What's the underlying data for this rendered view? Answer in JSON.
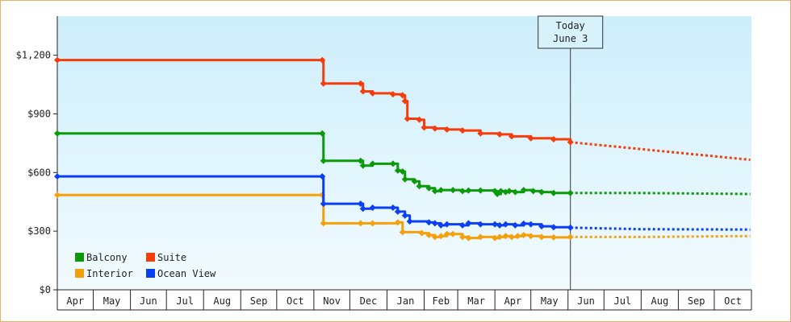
{
  "chart_data": {
    "type": "line",
    "ylim": [
      0,
      1400
    ],
    "y_ticks": [
      {
        "value": 0,
        "label": "$0"
      },
      {
        "value": 300,
        "label": "$300"
      },
      {
        "value": 600,
        "label": "$600"
      },
      {
        "value": 900,
        "label": "$900"
      },
      {
        "value": 1200,
        "label": "$1,200"
      }
    ],
    "x_domain": [
      "2024-04-01",
      "2025-11-01"
    ],
    "months": [
      {
        "start": "2024-04-01",
        "label": "Apr"
      },
      {
        "start": "2024-05-01",
        "label": "May"
      },
      {
        "start": "2024-06-01",
        "label": "Jun"
      },
      {
        "start": "2024-07-01",
        "label": "Jul"
      },
      {
        "start": "2024-08-01",
        "label": "Aug"
      },
      {
        "start": "2024-09-01",
        "label": "Sep"
      },
      {
        "start": "2024-10-01",
        "label": "Oct"
      },
      {
        "start": "2024-11-01",
        "label": "Nov"
      },
      {
        "start": "2024-12-01",
        "label": "Dec"
      },
      {
        "start": "2025-01-01",
        "label": "Jan"
      },
      {
        "start": "2025-02-01",
        "label": "Feb"
      },
      {
        "start": "2025-03-01",
        "label": "Mar"
      },
      {
        "start": "2025-04-01",
        "label": "Apr"
      },
      {
        "start": "2025-05-01",
        "label": "May"
      },
      {
        "start": "2025-06-01",
        "label": "Jun"
      },
      {
        "start": "2025-07-01",
        "label": "Jul"
      },
      {
        "start": "2025-08-01",
        "label": "Aug"
      },
      {
        "start": "2025-09-01",
        "label": "Sep"
      },
      {
        "start": "2025-10-01",
        "label": "Oct"
      }
    ],
    "today": {
      "date": "2025-06-03",
      "line1": "Today",
      "line2": "June 3"
    },
    "grid": false,
    "legend_placement": "bottom-left",
    "series": [
      {
        "name": "Balcony",
        "color": "#0a9a0a",
        "points": [
          [
            "2024-04-01",
            800
          ],
          [
            "2024-11-08",
            800
          ],
          [
            "2024-11-09",
            660
          ],
          [
            "2024-12-10",
            660
          ],
          [
            "2024-12-12",
            635
          ],
          [
            "2024-12-20",
            645
          ],
          [
            "2025-01-06",
            645
          ],
          [
            "2025-01-10",
            610
          ],
          [
            "2025-01-14",
            605
          ],
          [
            "2025-01-16",
            565
          ],
          [
            "2025-01-24",
            555
          ],
          [
            "2025-01-28",
            530
          ],
          [
            "2025-02-05",
            520
          ],
          [
            "2025-02-10",
            505
          ],
          [
            "2025-02-15",
            510
          ],
          [
            "2025-02-25",
            510
          ],
          [
            "2025-03-05",
            505
          ],
          [
            "2025-03-10",
            508
          ],
          [
            "2025-03-20",
            508
          ],
          [
            "2025-04-01",
            505
          ],
          [
            "2025-04-03",
            490
          ],
          [
            "2025-04-06",
            505
          ],
          [
            "2025-04-10",
            500
          ],
          [
            "2025-04-13",
            505
          ],
          [
            "2025-04-18",
            500
          ],
          [
            "2025-04-25",
            510
          ],
          [
            "2025-05-03",
            505
          ],
          [
            "2025-05-10",
            500
          ],
          [
            "2025-05-20",
            495
          ],
          [
            "2025-06-03",
            495
          ]
        ],
        "projection": [
          [
            "2025-06-03",
            495
          ],
          [
            "2025-08-01",
            495
          ],
          [
            "2025-10-31",
            490
          ]
        ]
      },
      {
        "name": "Suite",
        "color": "#f53c0a",
        "points": [
          [
            "2024-04-01",
            1175
          ],
          [
            "2024-11-08",
            1175
          ],
          [
            "2024-11-09",
            1055
          ],
          [
            "2024-12-10",
            1055
          ],
          [
            "2024-12-12",
            1015
          ],
          [
            "2024-12-20",
            1005
          ],
          [
            "2025-01-06",
            1000
          ],
          [
            "2025-01-14",
            995
          ],
          [
            "2025-01-16",
            965
          ],
          [
            "2025-01-18",
            875
          ],
          [
            "2025-01-28",
            870
          ],
          [
            "2025-02-01",
            830
          ],
          [
            "2025-02-10",
            825
          ],
          [
            "2025-02-20",
            820
          ],
          [
            "2025-03-05",
            815
          ],
          [
            "2025-03-20",
            800
          ],
          [
            "2025-04-05",
            795
          ],
          [
            "2025-04-15",
            785
          ],
          [
            "2025-05-01",
            775
          ],
          [
            "2025-05-20",
            770
          ],
          [
            "2025-06-03",
            755
          ]
        ],
        "projection": [
          [
            "2025-06-03",
            755
          ],
          [
            "2025-10-31",
            665
          ]
        ]
      },
      {
        "name": "Interior",
        "color": "#f5a00a",
        "points": [
          [
            "2024-04-01",
            485
          ],
          [
            "2024-11-08",
            485
          ],
          [
            "2024-11-09",
            340
          ],
          [
            "2024-12-10",
            340
          ],
          [
            "2024-12-20",
            340
          ],
          [
            "2025-01-10",
            345
          ],
          [
            "2025-01-14",
            295
          ],
          [
            "2025-01-30",
            290
          ],
          [
            "2025-02-05",
            280
          ],
          [
            "2025-02-10",
            270
          ],
          [
            "2025-02-15",
            275
          ],
          [
            "2025-02-20",
            285
          ],
          [
            "2025-02-25",
            285
          ],
          [
            "2025-03-05",
            270
          ],
          [
            "2025-03-10",
            265
          ],
          [
            "2025-03-20",
            270
          ],
          [
            "2025-04-01",
            265
          ],
          [
            "2025-04-05",
            270
          ],
          [
            "2025-04-10",
            275
          ],
          [
            "2025-04-15",
            270
          ],
          [
            "2025-04-20",
            275
          ],
          [
            "2025-04-25",
            280
          ],
          [
            "2025-05-01",
            275
          ],
          [
            "2025-05-10",
            270
          ],
          [
            "2025-05-20",
            268
          ],
          [
            "2025-06-03",
            270
          ]
        ],
        "projection": [
          [
            "2025-06-03",
            270
          ],
          [
            "2025-08-01",
            270
          ],
          [
            "2025-10-31",
            275
          ]
        ]
      },
      {
        "name": "Ocean View",
        "color": "#0a3ff5",
        "points": [
          [
            "2024-04-01",
            580
          ],
          [
            "2024-11-08",
            580
          ],
          [
            "2024-11-09",
            440
          ],
          [
            "2024-12-10",
            440
          ],
          [
            "2024-12-12",
            415
          ],
          [
            "2024-12-20",
            420
          ],
          [
            "2025-01-06",
            420
          ],
          [
            "2025-01-10",
            400
          ],
          [
            "2025-01-16",
            380
          ],
          [
            "2025-01-20",
            350
          ],
          [
            "2025-02-05",
            345
          ],
          [
            "2025-02-10",
            340
          ],
          [
            "2025-02-15",
            330
          ],
          [
            "2025-02-20",
            335
          ],
          [
            "2025-03-05",
            330
          ],
          [
            "2025-03-10",
            340
          ],
          [
            "2025-03-20",
            335
          ],
          [
            "2025-04-01",
            335
          ],
          [
            "2025-04-05",
            330
          ],
          [
            "2025-04-10",
            335
          ],
          [
            "2025-04-18",
            330
          ],
          [
            "2025-04-25",
            338
          ],
          [
            "2025-05-01",
            335
          ],
          [
            "2025-05-10",
            325
          ],
          [
            "2025-05-20",
            320
          ],
          [
            "2025-06-03",
            318
          ]
        ],
        "projection": [
          [
            "2025-06-03",
            318
          ],
          [
            "2025-08-01",
            310
          ],
          [
            "2025-10-31",
            308
          ]
        ]
      }
    ]
  }
}
